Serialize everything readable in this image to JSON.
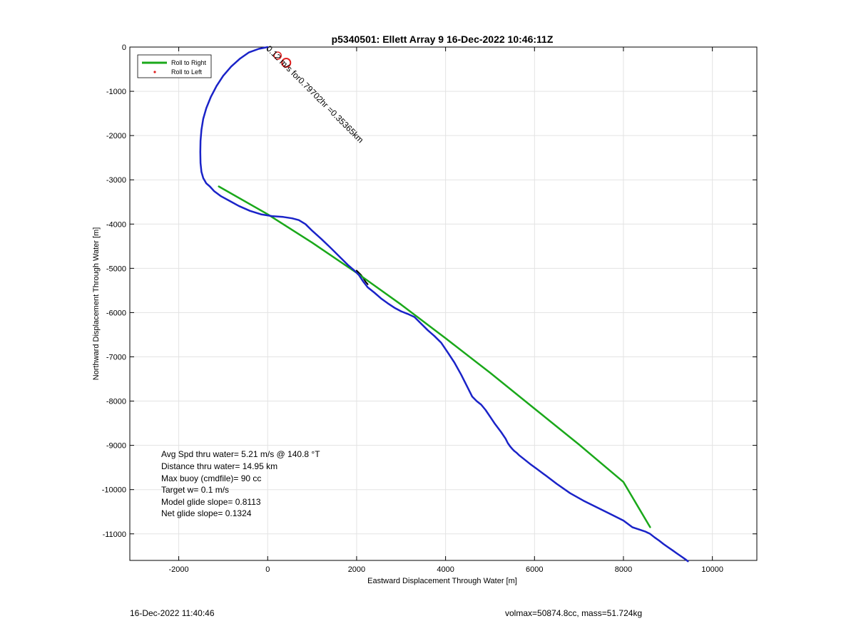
{
  "chart_data": {
    "type": "line",
    "title": "p5340501: Ellett Array 9 16-Dec-2022 10:46:11Z",
    "xlabel": "Eastward Displacement Through Water [m]",
    "ylabel": "Northward Displacement Through Water [m]",
    "xlim": [
      -3100,
      11000
    ],
    "ylim": [
      -11600,
      0
    ],
    "xticks": [
      -2000,
      0,
      2000,
      4000,
      6000,
      8000,
      10000
    ],
    "yticks": [
      0,
      -1000,
      -2000,
      -3000,
      -4000,
      -5000,
      -6000,
      -7000,
      -8000,
      -9000,
      -10000,
      -11000
    ],
    "grid": true,
    "legend_position": "top-left",
    "legend": [
      {
        "label": "Roll to Right",
        "color": "#1aa81a",
        "style": "line"
      },
      {
        "label": "Roll to Left",
        "color": "#e02020",
        "style": "dot"
      }
    ],
    "series": [
      {
        "color": "#1a23c8",
        "x": [
          0,
          -200,
          -420,
          -620,
          -820,
          -1000,
          -1150,
          -1280,
          -1380,
          -1450,
          -1490,
          -1510,
          -1515,
          -1510,
          -1490,
          -1450,
          -1380,
          -1300,
          -1200,
          -1050,
          -850,
          -650,
          -400,
          -150,
          100,
          350,
          550,
          700,
          850,
          1000,
          1200,
          1400,
          1600,
          1800,
          1950,
          2050,
          2150,
          2250,
          2400,
          2550,
          2700,
          2850,
          3000,
          3150,
          3300,
          3450,
          3600,
          3750,
          3900,
          4050,
          4200,
          4350,
          4500,
          4600,
          4700,
          4800,
          4900,
          5000,
          5100,
          5250,
          5350,
          5400,
          5450,
          5500,
          5550,
          5600,
          5650,
          5750,
          5900,
          6050,
          6250,
          6500,
          6800,
          7100,
          7400,
          7700,
          8000,
          8200,
          8350,
          8500,
          8600,
          8700,
          8800,
          8900,
          9000,
          9100,
          9200,
          9300,
          9400,
          9450
        ],
        "y": [
          0,
          -40,
          -120,
          -260,
          -440,
          -650,
          -880,
          -1130,
          -1380,
          -1620,
          -1870,
          -2120,
          -2370,
          -2620,
          -2820,
          -2960,
          -3080,
          -3150,
          -3260,
          -3370,
          -3480,
          -3590,
          -3700,
          -3780,
          -3820,
          -3840,
          -3870,
          -3910,
          -4000,
          -4150,
          -4330,
          -4520,
          -4720,
          -4920,
          -5050,
          -5150,
          -5300,
          -5430,
          -5550,
          -5680,
          -5790,
          -5890,
          -5970,
          -6030,
          -6100,
          -6250,
          -6400,
          -6530,
          -6680,
          -6900,
          -7130,
          -7400,
          -7700,
          -7900,
          -8000,
          -8080,
          -8200,
          -8350,
          -8500,
          -8700,
          -8850,
          -8950,
          -9020,
          -9080,
          -9130,
          -9170,
          -9220,
          -9300,
          -9420,
          -9530,
          -9680,
          -9870,
          -10080,
          -10250,
          -10400,
          -10550,
          -10700,
          -10850,
          -10900,
          -10950,
          -11000,
          -11080,
          -11150,
          -11230,
          -11300,
          -11370,
          -11440,
          -11510,
          -11580,
          -11620
        ]
      },
      {
        "color": "#1aa81a",
        "x": [
          -1100,
          0,
          1000,
          2000,
          3000,
          4000,
          5000,
          6000,
          7000,
          8000,
          8600
        ],
        "y": [
          -3150,
          -3780,
          -4420,
          -5100,
          -5820,
          -6580,
          -7360,
          -8170,
          -8980,
          -9830,
          -10850
        ]
      },
      {
        "color": "#000000",
        "x": [
          2000,
          2100,
          2150,
          2200,
          2250
        ],
        "y": [
          -5050,
          -5150,
          -5220,
          -5300,
          -5360
        ]
      }
    ],
    "annotations": [
      {
        "text": "0.12 m/s for0.79702hr =0.35365km",
        "x": 0,
        "y": 0,
        "rotation": 45
      }
    ],
    "stats": [
      "Avg Spd thru water=  5.21 m/s @ 140.8 °T",
      "Distance thru water= 14.95 km",
      "Max buoy (cmdfile)= 90 cc",
      "Target w= 0.1 m/s",
      "Model glide slope= 0.8113",
      "Net glide slope= 0.1324"
    ]
  },
  "footer": {
    "timestamp": "16-Dec-2022 11:40:46",
    "volmax": "volmax=50874.8cc, mass=51.724kg"
  }
}
